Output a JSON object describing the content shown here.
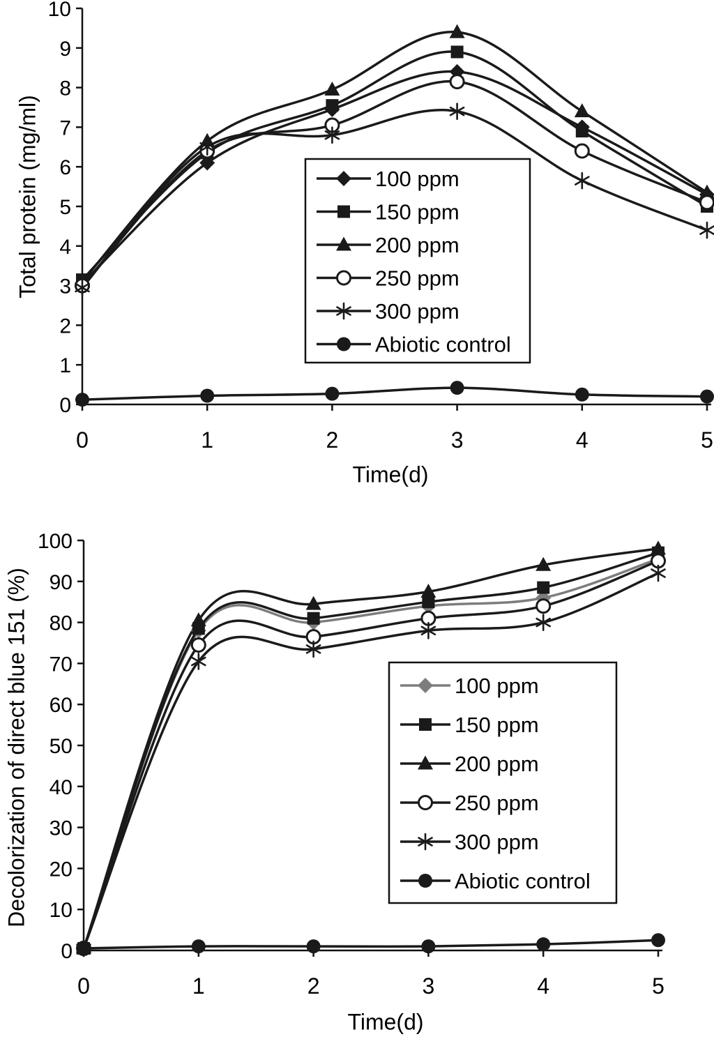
{
  "charts": [
    {
      "type": "line",
      "title": "",
      "ylabel": "Total protein (mg/ml)",
      "xlabel": "Time(d)",
      "x": [
        0,
        1,
        2,
        3,
        4,
        5
      ],
      "ylim": [
        0,
        10
      ],
      "ytick_step": 1,
      "grid": false,
      "legend_position": "center-right-inside",
      "series": [
        {
          "name": "100 ppm",
          "marker": "diamond",
          "color": "#1a1a1a",
          "values": [
            3.05,
            6.1,
            7.45,
            8.4,
            7.0,
            5.3
          ]
        },
        {
          "name": "150 ppm",
          "marker": "square",
          "color": "#1a1a1a",
          "values": [
            3.15,
            6.35,
            7.55,
            8.9,
            6.9,
            5.0
          ]
        },
        {
          "name": "200 ppm",
          "marker": "triangle",
          "color": "#1a1a1a",
          "values": [
            3.1,
            6.65,
            7.95,
            9.4,
            7.4,
            5.35
          ]
        },
        {
          "name": "250 ppm",
          "marker": "circle-open",
          "color": "#1a1a1a",
          "values": [
            3.0,
            6.4,
            7.05,
            8.15,
            6.4,
            5.1
          ]
        },
        {
          "name": "300 ppm",
          "marker": "asterisk",
          "color": "#1a1a1a",
          "values": [
            2.95,
            6.5,
            6.8,
            7.4,
            5.65,
            4.4
          ]
        },
        {
          "name": "Abiotic control",
          "marker": "circle",
          "color": "#1a1a1a",
          "values": [
            0.12,
            0.22,
            0.27,
            0.42,
            0.25,
            0.2
          ]
        }
      ]
    },
    {
      "type": "line",
      "title": "",
      "ylabel": "Decolorization of direct blue 151 (%)",
      "xlabel": "Time(d)",
      "x": [
        0,
        1,
        2,
        3,
        4,
        5
      ],
      "ylim": [
        0,
        100
      ],
      "ytick_step": 10,
      "grid": false,
      "legend_position": "lower-right-inside",
      "series": [
        {
          "name": "100 ppm",
          "marker": "diamond",
          "color": "#7d7d7d",
          "values": [
            0.5,
            78.0,
            80.0,
            84.0,
            86.0,
            95.5
          ]
        },
        {
          "name": "150 ppm",
          "marker": "square",
          "color": "#1a1a1a",
          "values": [
            0.5,
            78.5,
            81.0,
            85.0,
            88.5,
            97.0
          ]
        },
        {
          "name": "200 ppm",
          "marker": "triangle",
          "color": "#1a1a1a",
          "values": [
            0.5,
            80.5,
            84.5,
            87.5,
            94.0,
            98.0
          ]
        },
        {
          "name": "250 ppm",
          "marker": "circle-open",
          "color": "#1a1a1a",
          "values": [
            0.5,
            74.5,
            76.5,
            81.0,
            84.0,
            95.0
          ]
        },
        {
          "name": "300 ppm",
          "marker": "asterisk",
          "color": "#1a1a1a",
          "values": [
            0.5,
            70.5,
            73.5,
            78.0,
            80.0,
            92.0
          ]
        },
        {
          "name": "Abiotic control",
          "marker": "circle",
          "color": "#1a1a1a",
          "values": [
            0.5,
            1.0,
            1.0,
            1.0,
            1.5,
            2.5
          ]
        }
      ]
    }
  ]
}
